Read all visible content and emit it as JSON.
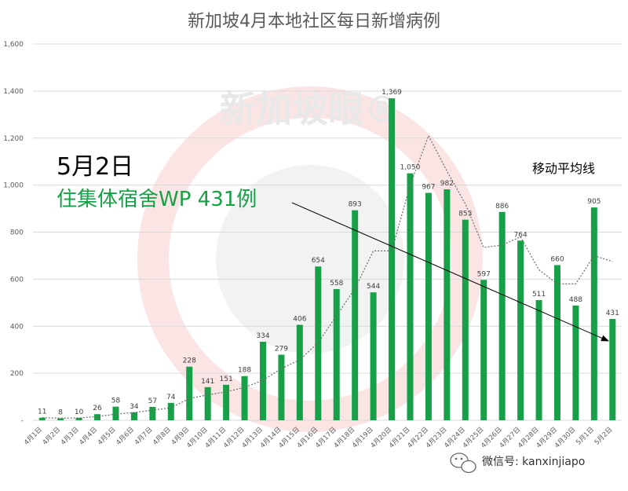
{
  "chart_data": {
    "type": "bar",
    "title": "新加坡4月本地社区每日新增病例",
    "categories": [
      "4月1日",
      "4月2日",
      "4月3日",
      "4月4日",
      "4月5日",
      "4月6日",
      "4月7日",
      "4月8日",
      "4月9日",
      "4月10日",
      "4月11日",
      "4月12日",
      "4月13日",
      "4月14日",
      "4月15日",
      "4月16日",
      "4月17日",
      "4月18日",
      "4月19日",
      "4月20日",
      "4月21日",
      "4月22日",
      "4月23日",
      "4月24日",
      "4月25日",
      "4月26日",
      "4月27日",
      "4月28日",
      "4月29日",
      "4月30日",
      "5月1日",
      "5月2日"
    ],
    "values": [
      11,
      8,
      10,
      26,
      58,
      34,
      57,
      74,
      228,
      141,
      151,
      188,
      334,
      279,
      406,
      654,
      558,
      893,
      544,
      1369,
      1050,
      967,
      982,
      853,
      597,
      886,
      764,
      511,
      660,
      488,
      905,
      431
    ],
    "moving_average": {
      "name": "移动平均线",
      "values": [
        11,
        9,
        10,
        16,
        26,
        33,
        43,
        53,
        93,
        108,
        121,
        140,
        170,
        220,
        257,
        330,
        445,
        560,
        720,
        720,
        1000,
        1210,
        1060,
        920,
        735,
        745,
        780,
        640,
        580,
        580,
        700,
        675
      ]
    },
    "ylim": [
      0,
      1600
    ],
    "yticks": [
      "-",
      "200",
      "400",
      "600",
      "800",
      "1,000",
      "1,200",
      "1,400",
      "1,600"
    ],
    "grid": true,
    "bar_color": "#18a049",
    "annotation": {
      "date": "5月2日",
      "text": "住集体宿舍WP 431例"
    },
    "legend_label": "移动平均线"
  },
  "watermark": {
    "text": "新加坡眼®"
  },
  "footer": {
    "label": "微信号: kanxinjiapo",
    "icon": "wechat-icon"
  }
}
